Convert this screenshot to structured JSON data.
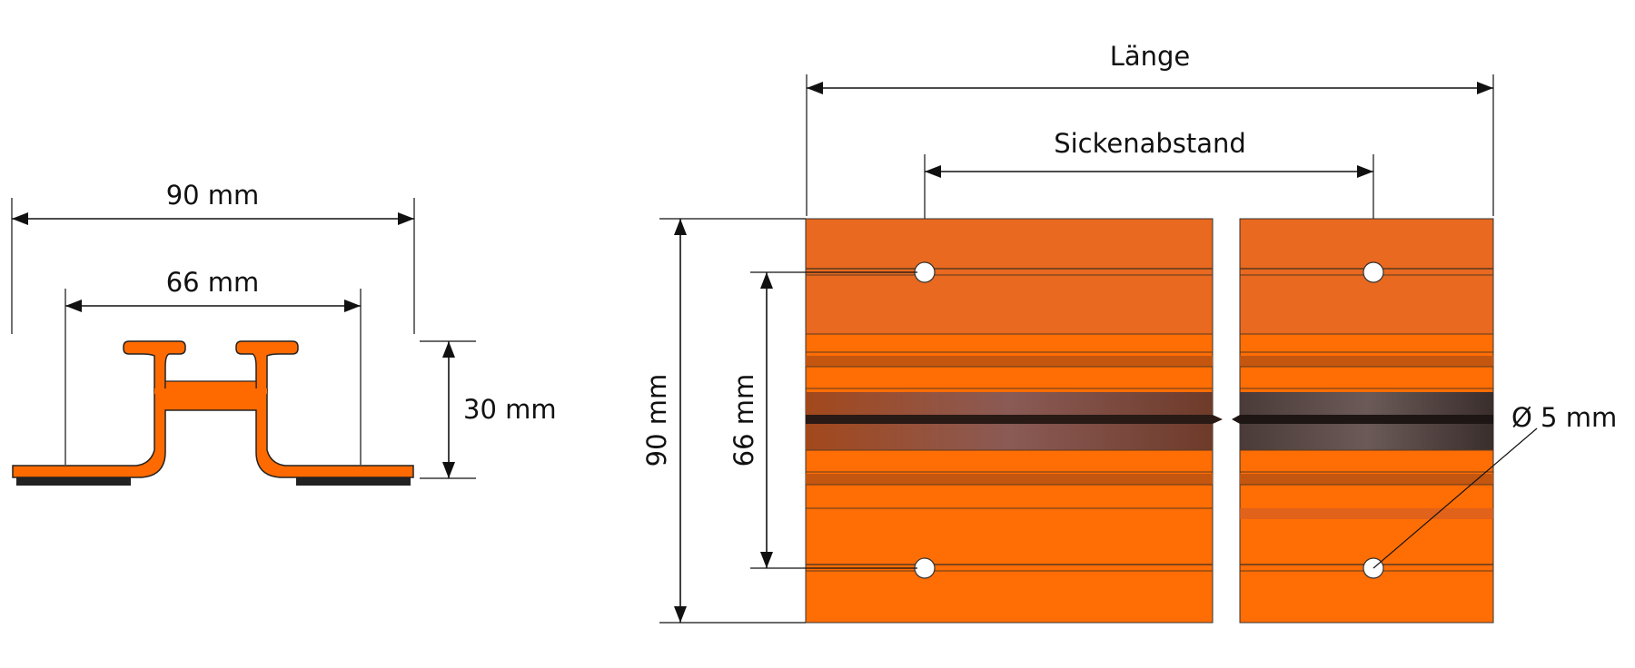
{
  "profile_view": {
    "width_label": "90 mm",
    "inner_spacing_label": "66 mm",
    "height_label": "30 mm"
  },
  "plan_view": {
    "length_label": "Länge",
    "bead_spacing_label": "Sickenabstand",
    "width_label": "90 mm",
    "hole_spacing_label": "66 mm",
    "hole_diameter_label": "Ø 5 mm"
  },
  "colors": {
    "profile_orange": "#ff6a00",
    "sheet_orange": "#ff6d05",
    "sheet_top_orange": "#e8691f",
    "shadow_band": "#7a4a3a",
    "seal_black": "#222222",
    "line": "#111111"
  }
}
